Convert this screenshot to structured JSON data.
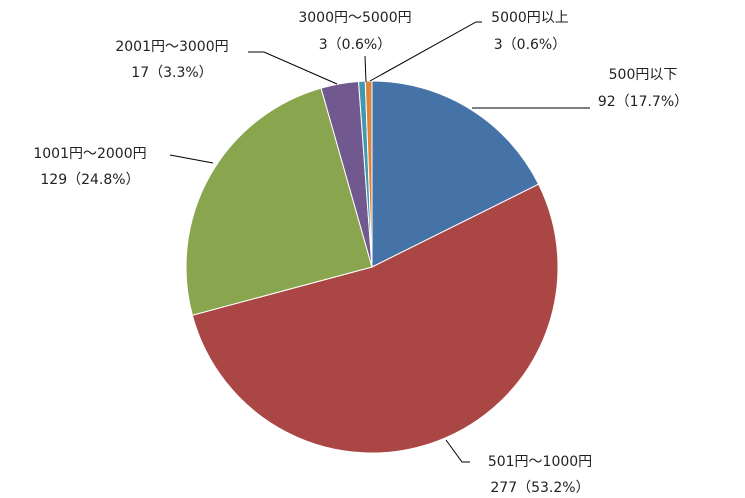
{
  "chart_data": {
    "type": "pie",
    "categories": [
      "500円以下",
      "501円～1000円",
      "1001円～2000円",
      "2001円～3000円",
      "3000円～5000円",
      "5000円以上"
    ],
    "values": [
      92,
      277,
      129,
      17,
      3,
      3
    ],
    "value_labels": [
      "92（17.7%）",
      "277（53.2%）",
      "129（24.8%）",
      "17（3.3%）",
      "3（0.6%）",
      "3（0.6%）"
    ],
    "colors": [
      "#4572a7",
      "#aa4643",
      "#89a54e",
      "#71588f",
      "#4198af",
      "#db843d"
    ]
  }
}
